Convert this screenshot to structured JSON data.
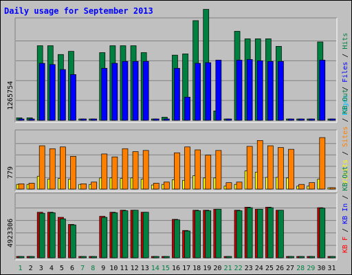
{
  "chart_data": {
    "type": "bar",
    "title": "Daily usage for September 2013",
    "categories": [
      "1",
      "2",
      "3",
      "4",
      "5",
      "6",
      "7",
      "8",
      "9",
      "10",
      "11",
      "12",
      "13",
      "14",
      "15",
      "16",
      "17",
      "18",
      "19",
      "20",
      "21",
      "22",
      "23",
      "24",
      "25",
      "26",
      "27",
      "28",
      "29",
      "30",
      "31"
    ],
    "weekend_days": [
      "1",
      "7",
      "8",
      "14",
      "15",
      "21",
      "22",
      "28",
      "29"
    ],
    "panels": [
      {
        "id": "hits",
        "ylabel_max": "1265754",
        "ymax": 1265754,
        "legend": [
          {
            "text": "Pages",
            "color": "#00c0ff"
          },
          {
            "text": "Files",
            "color": "#0000ff"
          },
          {
            "text": "Hits",
            "color": "#008040"
          }
        ],
        "series": [
          {
            "name": "Hits",
            "color": "#008040",
            "values": [
              40000,
              40000,
              1190000,
              1190000,
              1050000,
              1100000,
              0,
              0,
              1080000,
              1190000,
              1190000,
              1190000,
              1080000,
              20000,
              50000,
              1040000,
              1060000,
              1590000,
              1770000,
              150000,
              0,
              1420000,
              1300000,
              1300000,
              1300000,
              1180000,
              0,
              0,
              0,
              1250000,
              0
            ]
          },
          {
            "name": "Files",
            "color": "#0000ff",
            "values": [
              0,
              0,
              910000,
              890000,
              810000,
              730000,
              0,
              0,
              830000,
              910000,
              940000,
              940000,
              940000,
              0,
              0,
              830000,
              370000,
              910000,
              920000,
              960000,
              0,
              960000,
              970000,
              950000,
              940000,
              940000,
              0,
              0,
              0,
              960000,
              0
            ]
          }
        ]
      },
      {
        "id": "kbytes",
        "ylabel_max": "779",
        "ymax": 779,
        "legend": [
          {
            "text": "Visits",
            "color": "#ffff00"
          },
          {
            "text": "Sites",
            "color": "#ff8000"
          },
          {
            "text": "KB Out",
            "color": "#008040"
          }
        ],
        "series": [
          {
            "name": "Visits",
            "color": "#ffff00",
            "values": [
              80,
              80,
              220,
              170,
              180,
              170,
              80,
              80,
              190,
              190,
              180,
              190,
              170,
              70,
              80,
              160,
              150,
              230,
              190,
              190,
              50,
              80,
              310,
              290,
              200,
              200,
              190,
              50,
              50,
              170,
              0
            ]
          },
          {
            "name": "Sites",
            "color": "#ff8000",
            "values": [
              90,
              100,
              740,
              690,
              720,
              560,
              90,
              120,
              600,
              550,
              690,
              640,
              660,
              100,
              120,
              620,
              720,
              670,
              580,
              660,
              110,
              120,
              730,
              830,
              740,
              710,
              680,
              80,
              110,
              880,
              0
            ]
          }
        ]
      },
      {
        "id": "traffic",
        "ylabel_max": "4923306",
        "ymax": 4923306,
        "legend": [
          {
            "text": "KB F",
            "color": "#ff0000"
          },
          {
            "text": "KB In",
            "color": "#0000ff"
          },
          {
            "text": "KB Out",
            "color": "#008040"
          }
        ],
        "series": [
          {
            "name": "KB F",
            "color": "#cc0000",
            "values": [
              0,
              0,
              4500000,
              4500000,
              4000000,
              3300000,
              0,
              0,
              4100000,
              4500000,
              4700000,
              4700000,
              4500000,
              0,
              0,
              3800000,
              2700000,
              4700000,
              4700000,
              4800000,
              0,
              4700000,
              5000000,
              4800000,
              5000000,
              4700000,
              0,
              0,
              0,
              4950000,
              0
            ]
          },
          {
            "name": "KB Out",
            "color": "#008040",
            "values": [
              0,
              0,
              4400000,
              4450000,
              3850000,
              3250000,
              0,
              0,
              4000000,
              4450000,
              4650000,
              4700000,
              4500000,
              0,
              0,
              3750000,
              2650000,
              4650000,
              4650000,
              4800000,
              0,
              4650000,
              4950000,
              4800000,
              4950000,
              4700000,
              0,
              0,
              0,
              4900000,
              0
            ]
          }
        ]
      }
    ]
  }
}
